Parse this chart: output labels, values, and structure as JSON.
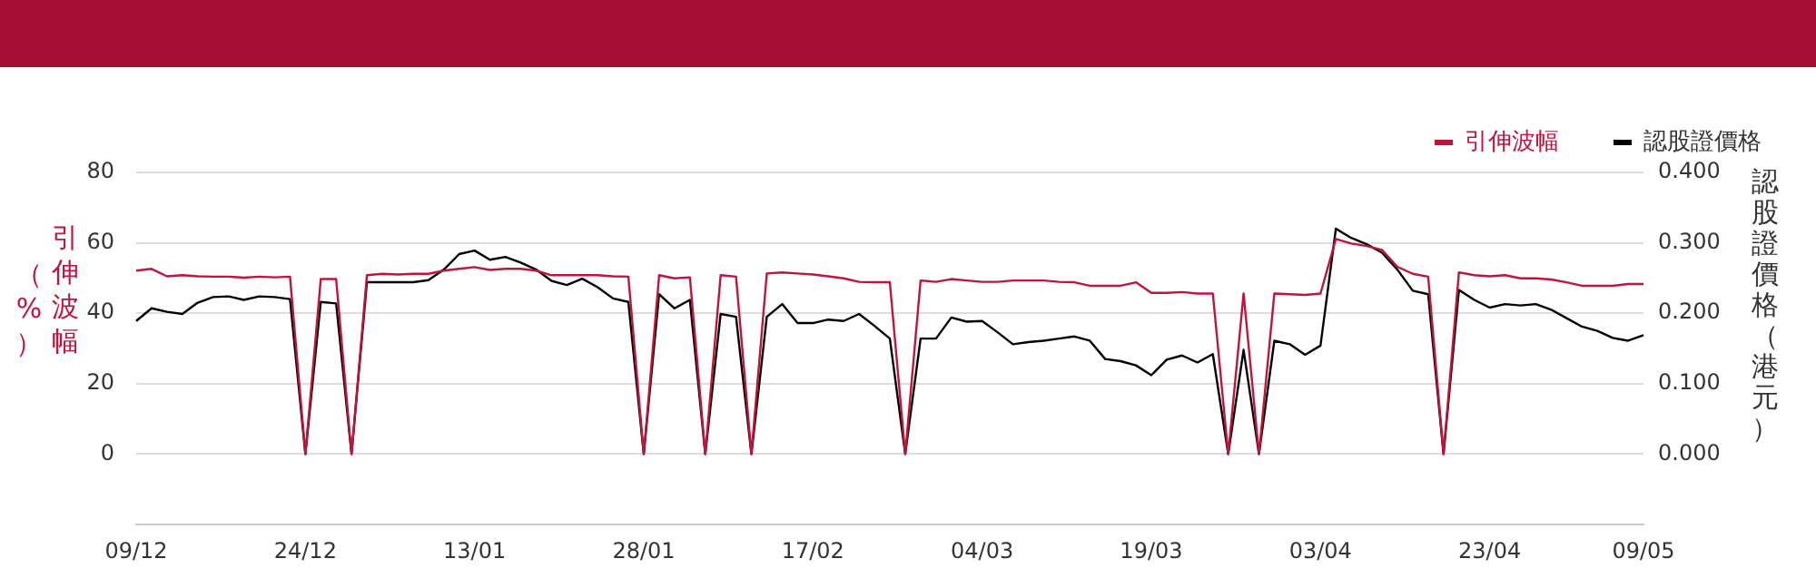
{
  "chart_data": {
    "type": "line",
    "ylabel": "引伸波幅（%）",
    "y2label": "認股證價格（港元）",
    "categories": [
      "09/12",
      null,
      null,
      null,
      null,
      null,
      null,
      null,
      null,
      null,
      null,
      "24/12",
      null,
      null,
      null,
      null,
      null,
      null,
      null,
      null,
      null,
      null,
      "13/01",
      null,
      null,
      null,
      null,
      null,
      null,
      null,
      null,
      null,
      null,
      "28/01",
      null,
      null,
      null,
      null,
      null,
      null,
      null,
      null,
      null,
      null,
      "17/02",
      null,
      null,
      null,
      null,
      null,
      null,
      null,
      null,
      null,
      null,
      "04/03",
      null,
      null,
      null,
      null,
      null,
      null,
      null,
      null,
      null,
      null,
      "19/03",
      null,
      null,
      null,
      null,
      null,
      null,
      null,
      null,
      null,
      null,
      "03/04",
      null,
      null,
      null,
      null,
      null,
      null,
      null,
      null,
      null,
      null,
      "23/04",
      null,
      null,
      null,
      null,
      null,
      null,
      null,
      null,
      null,
      "09/05"
    ],
    "series": [
      {
        "name": "引伸波幅",
        "color": "#c0143c",
        "values": [
          52.1,
          52.6,
          50.5,
          50.8,
          50.5,
          50.4,
          50.4,
          50.1,
          50.4,
          50.2,
          50.4,
          0,
          49.7,
          49.7,
          0,
          50.8,
          51.2,
          51.0,
          51.2,
          51.2,
          52.1,
          52.6,
          53.1,
          52.3,
          52.6,
          52.6,
          52.1,
          50.8,
          50.8,
          50.8,
          50.8,
          50.5,
          50.4,
          0,
          50.8,
          49.9,
          50.2,
          0,
          50.8,
          50.4,
          0,
          51.3,
          51.6,
          51.3,
          51.0,
          50.5,
          49.9,
          48.9,
          48.8,
          48.8,
          0,
          49.3,
          48.9,
          49.7,
          49.3,
          48.9,
          48.9,
          49.3,
          49.3,
          49.3,
          48.9,
          48.8,
          47.8,
          47.8,
          47.8,
          48.8,
          45.8,
          45.8,
          46.0,
          45.6,
          45.6,
          0,
          45.6,
          0,
          45.6,
          45.4,
          45.2,
          45.6,
          61.1,
          59.8,
          59.1,
          58.0,
          53.2,
          51.2,
          50.4,
          0,
          51.6,
          50.8,
          50.5,
          50.8,
          49.9,
          49.9,
          49.6,
          48.8,
          47.8,
          47.8,
          47.8,
          48.3,
          48.3
        ]
      },
      {
        "name": "認股證價格",
        "color": "#000000",
        "axis": "y2",
        "values": [
          0.189,
          0.207,
          0.202,
          0.199,
          0.215,
          0.223,
          0.224,
          0.219,
          0.224,
          0.223,
          0.22,
          0,
          0.216,
          0.214,
          0,
          0.244,
          0.244,
          0.244,
          0.244,
          0.247,
          0.262,
          0.284,
          0.289,
          0.276,
          0.28,
          0.272,
          0.262,
          0.246,
          0.24,
          0.249,
          0.237,
          0.221,
          0.216,
          0,
          0.227,
          0.207,
          0.219,
          0,
          0.199,
          0.195,
          0,
          0.195,
          0.213,
          0.186,
          0.186,
          0.191,
          0.189,
          0.199,
          0.182,
          0.164,
          0,
          0.164,
          0.164,
          0.194,
          0.188,
          0.189,
          0.173,
          0.156,
          0.159,
          0.161,
          0.164,
          0.167,
          0.161,
          0.135,
          0.132,
          0.126,
          0.112,
          0.134,
          0.14,
          0.13,
          0.142,
          0,
          0.148,
          0,
          0.161,
          0.156,
          0.141,
          0.154,
          0.32,
          0.307,
          0.298,
          0.286,
          0.262,
          0.232,
          0.227,
          0,
          0.233,
          0.219,
          0.208,
          0.213,
          0.211,
          0.213,
          0.205,
          0.193,
          0.181,
          0.175,
          0.165,
          0.161,
          0.169
        ]
      }
    ],
    "ylim": [
      -20,
      80
    ],
    "yticks": [
      0,
      20,
      40,
      60,
      80
    ],
    "y2lim": [
      -0.1,
      0.4
    ],
    "y2ticks": [
      {
        "value": 0,
        "label": "0.000"
      },
      {
        "value": 0.1,
        "label": "0.100"
      },
      {
        "value": 0.2,
        "label": "0.200"
      },
      {
        "value": 0.3,
        "label": "0.300"
      },
      {
        "value": 0.4,
        "label": "0.400"
      }
    ],
    "grid": "y",
    "legend": "top right",
    "marker": "none",
    "line_style": "solid"
  }
}
